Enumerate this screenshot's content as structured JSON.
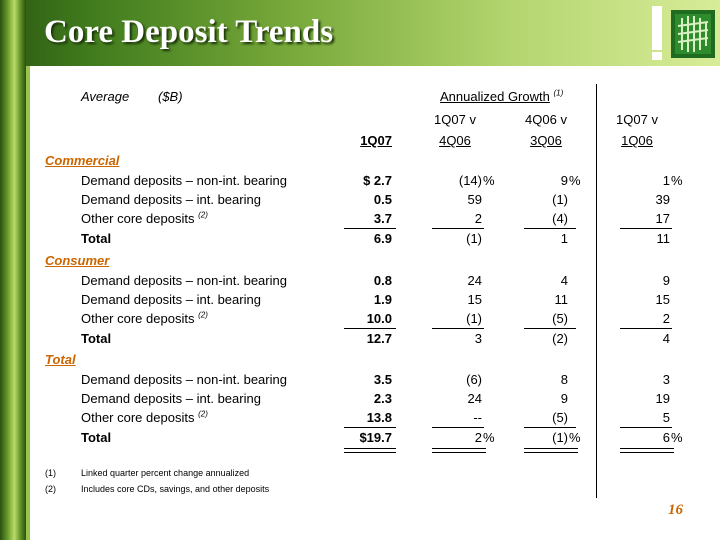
{
  "title": "Core Deposit Trends",
  "header": {
    "average": "Average",
    "units": "($B)",
    "growth_label": "Annualized Growth",
    "growth_note": "(1)",
    "cols_top": [
      "1Q07 v",
      "4Q06 v",
      "1Q07 v"
    ],
    "cols_bottom": [
      "1Q07",
      "4Q06",
      "3Q06",
      "1Q06"
    ]
  },
  "sections": [
    {
      "name": "Commercial",
      "rows": [
        {
          "label": "Demand deposits – non-int. bearing",
          "sup": "",
          "v": [
            "$  2.7",
            "(14)",
            "9",
            "1"
          ]
        },
        {
          "label": "Demand deposits – int. bearing",
          "sup": "",
          "v": [
            "0.5",
            "59",
            "(1)",
            "39"
          ]
        },
        {
          "label": "Other core deposits",
          "sup": "(2)",
          "v": [
            "3.7",
            "2",
            "(4)",
            "17"
          ]
        },
        {
          "label": "Total",
          "sup": "",
          "v": [
            "6.9",
            "(1)",
            "1",
            "11"
          ]
        }
      ]
    },
    {
      "name": "Consumer",
      "rows": [
        {
          "label": "Demand deposits – non-int. bearing",
          "sup": "",
          "v": [
            "0.8",
            "24",
            "4",
            "9"
          ]
        },
        {
          "label": "Demand deposits – int. bearing",
          "sup": "",
          "v": [
            "1.9",
            "15",
            "11",
            "15"
          ]
        },
        {
          "label": "Other core deposits",
          "sup": "(2)",
          "v": [
            "10.0",
            "(1)",
            "(5)",
            "2"
          ]
        },
        {
          "label": "Total",
          "sup": "",
          "v": [
            "12.7",
            "3",
            "(2)",
            "4"
          ]
        }
      ]
    },
    {
      "name": "Total",
      "rows": [
        {
          "label": "Demand deposits – non-int. bearing",
          "sup": "",
          "v": [
            "3.5",
            "(6)",
            "8",
            "3"
          ]
        },
        {
          "label": "Demand deposits – int. bearing",
          "sup": "",
          "v": [
            "2.3",
            "24",
            "9",
            "19"
          ]
        },
        {
          "label": "Other core deposits",
          "sup": "(2)",
          "v": [
            "13.8",
            "--",
            "(5)",
            "5"
          ]
        },
        {
          "label": "Total",
          "sup": "",
          "v": [
            "$19.7",
            "2",
            "(1)",
            "6"
          ]
        }
      ]
    }
  ],
  "percent": "%",
  "footnotes": [
    {
      "num": "(1)",
      "text": "Linked quarter percent change annualized"
    },
    {
      "num": "(2)",
      "text": "Includes core CDs, savings, and other deposits"
    }
  ],
  "page_number": "16"
}
